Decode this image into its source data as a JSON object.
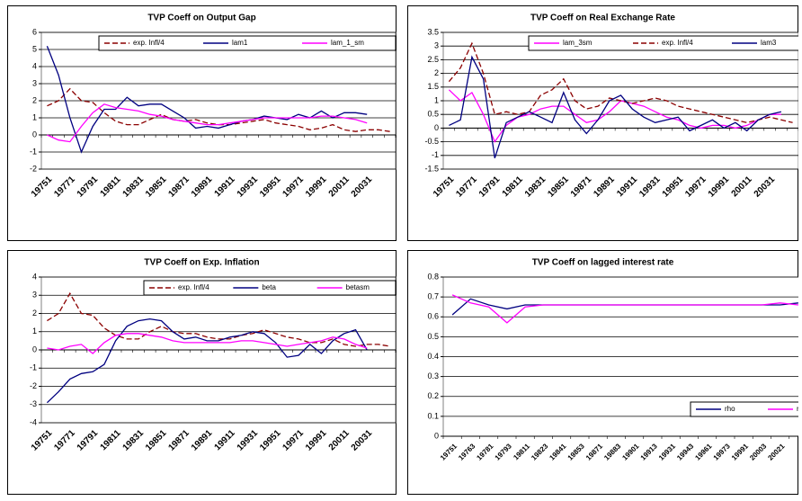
{
  "chart_data": [
    {
      "type": "line",
      "title": "TVP Coeff on Output Gap",
      "legend": "top-right",
      "categories": [
        "19751",
        null,
        "19771",
        null,
        "19791",
        null,
        "19811",
        null,
        "19831",
        null,
        "19851",
        null,
        "19871",
        null,
        "19891",
        null,
        "19911",
        null,
        "19931",
        null,
        "19951",
        null,
        "19971",
        null,
        "19991",
        null,
        "20011",
        null,
        "20031",
        null,
        null
      ],
      "ylim": [
        -2,
        6
      ],
      "yticks": [
        -2,
        -1,
        0,
        1,
        2,
        3,
        4,
        5,
        6
      ],
      "grid": true,
      "series": [
        {
          "name": "exp. Infl/4",
          "color": "#8b0000",
          "dashed": true,
          "values": [
            1.7,
            2.0,
            2.7,
            2.0,
            1.9,
            1.3,
            0.8,
            0.6,
            0.6,
            0.9,
            1.2,
            0.9,
            0.8,
            0.9,
            0.7,
            0.6,
            0.6,
            0.7,
            0.8,
            0.9,
            0.7,
            0.6,
            0.5,
            0.3,
            0.4,
            0.6,
            0.3,
            0.2,
            0.3,
            0.3,
            0.2
          ]
        },
        {
          "name": "lam1",
          "color": "#000080",
          "dashed": false,
          "values": [
            5.2,
            3.5,
            1.0,
            -1.0,
            0.5,
            1.5,
            1.5,
            2.2,
            1.7,
            1.8,
            1.8,
            1.4,
            1.0,
            0.4,
            0.5,
            0.4,
            0.6,
            0.8,
            0.9,
            1.1,
            1.0,
            0.9,
            1.2,
            1.0,
            1.4,
            1.0,
            1.3,
            1.3,
            1.2,
            null,
            null
          ]
        },
        {
          "name": "lam_1_sm",
          "color": "#ff00ff",
          "dashed": false,
          "values": [
            0.0,
            -0.3,
            -0.4,
            0.5,
            1.3,
            1.8,
            1.6,
            1.5,
            1.4,
            1.2,
            1.1,
            0.9,
            0.8,
            0.7,
            0.6,
            0.6,
            0.7,
            0.8,
            0.9,
            1.0,
            1.0,
            1.0,
            1.0,
            1.0,
            1.1,
            1.1,
            1.0,
            0.9,
            0.7,
            null,
            null
          ]
        }
      ]
    },
    {
      "type": "line",
      "title": "TVP Coeff on Real Exchange Rate",
      "legend": "top-right",
      "categories": [
        "19751",
        null,
        "19771",
        null,
        "19791",
        null,
        "19811",
        null,
        "19831",
        null,
        "19851",
        null,
        "19871",
        null,
        "19891",
        null,
        "19911",
        null,
        "19931",
        null,
        "19951",
        null,
        "19971",
        null,
        "19991",
        null,
        "20011",
        null,
        "20031",
        null,
        null
      ],
      "ylim": [
        -1.5,
        3.5
      ],
      "yticks": [
        -1.5,
        -1,
        -0.5,
        0,
        0.5,
        1,
        1.5,
        2,
        2.5,
        3,
        3.5
      ],
      "grid": true,
      "series": [
        {
          "name": "lam_3sm",
          "color": "#ff00ff",
          "dashed": false,
          "values": [
            1.4,
            1.0,
            1.3,
            0.5,
            -0.5,
            0.1,
            0.4,
            0.5,
            0.7,
            0.8,
            0.8,
            0.5,
            0.2,
            0.3,
            0.6,
            1.0,
            0.9,
            0.8,
            0.6,
            0.4,
            0.3,
            0.1,
            0.0,
            0.1,
            0.1,
            0.0,
            0.1,
            0.3,
            0.5,
            0.5,
            null
          ]
        },
        {
          "name": "exp. Infl/4",
          "color": "#8b0000",
          "dashed": true,
          "values": [
            1.7,
            2.2,
            3.1,
            2.0,
            0.5,
            0.6,
            0.5,
            0.6,
            1.2,
            1.4,
            1.8,
            1.0,
            0.7,
            0.8,
            1.1,
            1.0,
            0.9,
            1.0,
            1.1,
            1.0,
            0.8,
            0.7,
            0.6,
            0.5,
            0.4,
            0.3,
            0.2,
            0.3,
            0.4,
            0.3,
            0.2
          ]
        },
        {
          "name": "lam3",
          "color": "#000080",
          "dashed": false,
          "values": [
            0.1,
            0.3,
            2.6,
            1.8,
            -1.1,
            0.2,
            0.4,
            0.6,
            0.4,
            0.2,
            1.3,
            0.3,
            -0.2,
            0.3,
            1.0,
            1.2,
            0.7,
            0.4,
            0.2,
            0.3,
            0.4,
            -0.1,
            0.1,
            0.3,
            0.0,
            0.2,
            -0.1,
            0.3,
            0.5,
            0.6,
            null
          ]
        }
      ]
    },
    {
      "type": "line",
      "title": "TVP Coeff on Exp. Inflation",
      "legend": "top-right",
      "categories": [
        "19751",
        null,
        "19771",
        null,
        "19791",
        null,
        "19811",
        null,
        "19831",
        null,
        "19851",
        null,
        "19871",
        null,
        "19891",
        null,
        "19911",
        null,
        "19931",
        null,
        "19951",
        null,
        "19971",
        null,
        "19991",
        null,
        "20011",
        null,
        "20031",
        null,
        null
      ],
      "ylim": [
        -4,
        4
      ],
      "yticks": [
        -4,
        -3,
        -2,
        -1,
        0,
        1,
        2,
        3,
        4
      ],
      "grid": true,
      "series": [
        {
          "name": "exp. Infl/4",
          "color": "#8b0000",
          "dashed": true,
          "values": [
            1.6,
            2.0,
            3.1,
            2.0,
            1.9,
            1.2,
            0.8,
            0.6,
            0.6,
            1.0,
            1.3,
            1.0,
            0.9,
            0.9,
            0.7,
            0.6,
            0.6,
            0.8,
            0.9,
            1.1,
            0.9,
            0.7,
            0.6,
            0.4,
            0.4,
            0.6,
            0.3,
            0.2,
            0.3,
            0.3,
            0.2
          ]
        },
        {
          "name": "beta",
          "color": "#000080",
          "dashed": false,
          "values": [
            -2.9,
            -2.3,
            -1.6,
            -1.3,
            -1.2,
            -0.8,
            0.5,
            1.3,
            1.6,
            1.7,
            1.6,
            1.0,
            0.6,
            0.7,
            0.5,
            0.5,
            0.7,
            0.8,
            1.0,
            0.9,
            0.4,
            -0.4,
            -0.3,
            0.3,
            -0.2,
            0.5,
            0.9,
            1.1,
            0.0,
            null,
            null
          ]
        },
        {
          "name": "betasm",
          "color": "#ff00ff",
          "dashed": false,
          "values": [
            0.1,
            0.0,
            0.2,
            0.3,
            -0.2,
            0.4,
            0.8,
            0.9,
            0.9,
            0.8,
            0.7,
            0.5,
            0.4,
            0.4,
            0.4,
            0.4,
            0.4,
            0.5,
            0.5,
            0.4,
            0.3,
            0.2,
            0.3,
            0.4,
            0.5,
            0.7,
            0.6,
            0.3,
            0.1,
            null,
            null
          ]
        }
      ]
    },
    {
      "type": "line",
      "title": "TVP Coeff on lagged interest rate",
      "legend": "bottom-right",
      "categories": [
        "19751",
        "19763",
        "19781",
        "19793",
        "19811",
        "19823",
        "19841",
        "19853",
        "19871",
        "19883",
        "19901",
        "19913",
        "19931",
        "19943",
        "19961",
        "19973",
        "19991",
        "20003",
        "20021",
        null
      ],
      "ylim": [
        0,
        0.8
      ],
      "yticks": [
        0,
        0.1,
        0.2,
        0.3,
        0.4,
        0.5,
        0.6,
        0.7,
        0.8
      ],
      "grid": true,
      "series": [
        {
          "name": "rho",
          "color": "#000080",
          "dashed": false,
          "values": [
            0.61,
            0.69,
            0.66,
            0.64,
            0.66,
            0.66,
            0.66,
            0.66,
            0.66,
            0.66,
            0.66,
            0.66,
            0.66,
            0.66,
            0.66,
            0.66,
            0.66,
            0.66,
            0.66,
            0.67
          ]
        },
        {
          "name": "rhot_sm",
          "color": "#ff00ff",
          "dashed": false,
          "values": [
            0.71,
            0.67,
            0.65,
            0.57,
            0.65,
            0.66,
            0.66,
            0.66,
            0.66,
            0.66,
            0.66,
            0.66,
            0.66,
            0.66,
            0.66,
            0.66,
            0.66,
            0.66,
            0.67,
            0.66
          ]
        }
      ]
    }
  ]
}
